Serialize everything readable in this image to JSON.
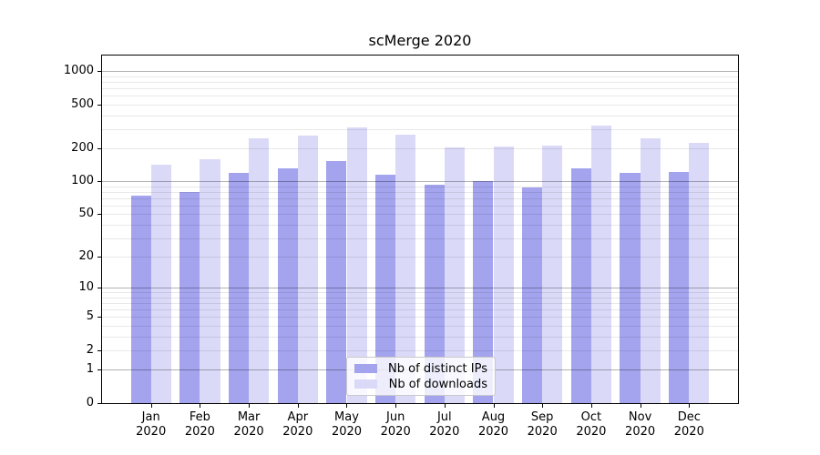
{
  "chart_data": {
    "type": "bar",
    "title": "scMerge 2020",
    "categories": [
      "Jan",
      "Feb",
      "Mar",
      "Apr",
      "May",
      "Jun",
      "Jul",
      "Aug",
      "Sep",
      "Oct",
      "Nov",
      "Dec"
    ],
    "category_year": "2020",
    "series": [
      {
        "name": "Nb of distinct IPs",
        "color": "#a3a3ee",
        "values": [
          74,
          80,
          120,
          132,
          154,
          115,
          94,
          100,
          88,
          131,
          120,
          121
        ]
      },
      {
        "name": "Nb of downloads",
        "color": "#dadaf8",
        "values": [
          142,
          160,
          248,
          260,
          308,
          265,
          204,
          209,
          211,
          320,
          248,
          224
        ]
      }
    ],
    "y_ticks": [
      0,
      1,
      2,
      5,
      10,
      20,
      50,
      100,
      200,
      500,
      1000
    ],
    "scale": "log10(1+v)",
    "ylim": [
      0,
      1386
    ],
    "grid": "horizontal",
    "legend_position": "lower-center-inside",
    "colors": {
      "major_grid": "#b3b3b3",
      "minor_grid": "#e8e8e8",
      "axis": "#000000",
      "text": "#000000",
      "background": "#ffffff"
    }
  }
}
